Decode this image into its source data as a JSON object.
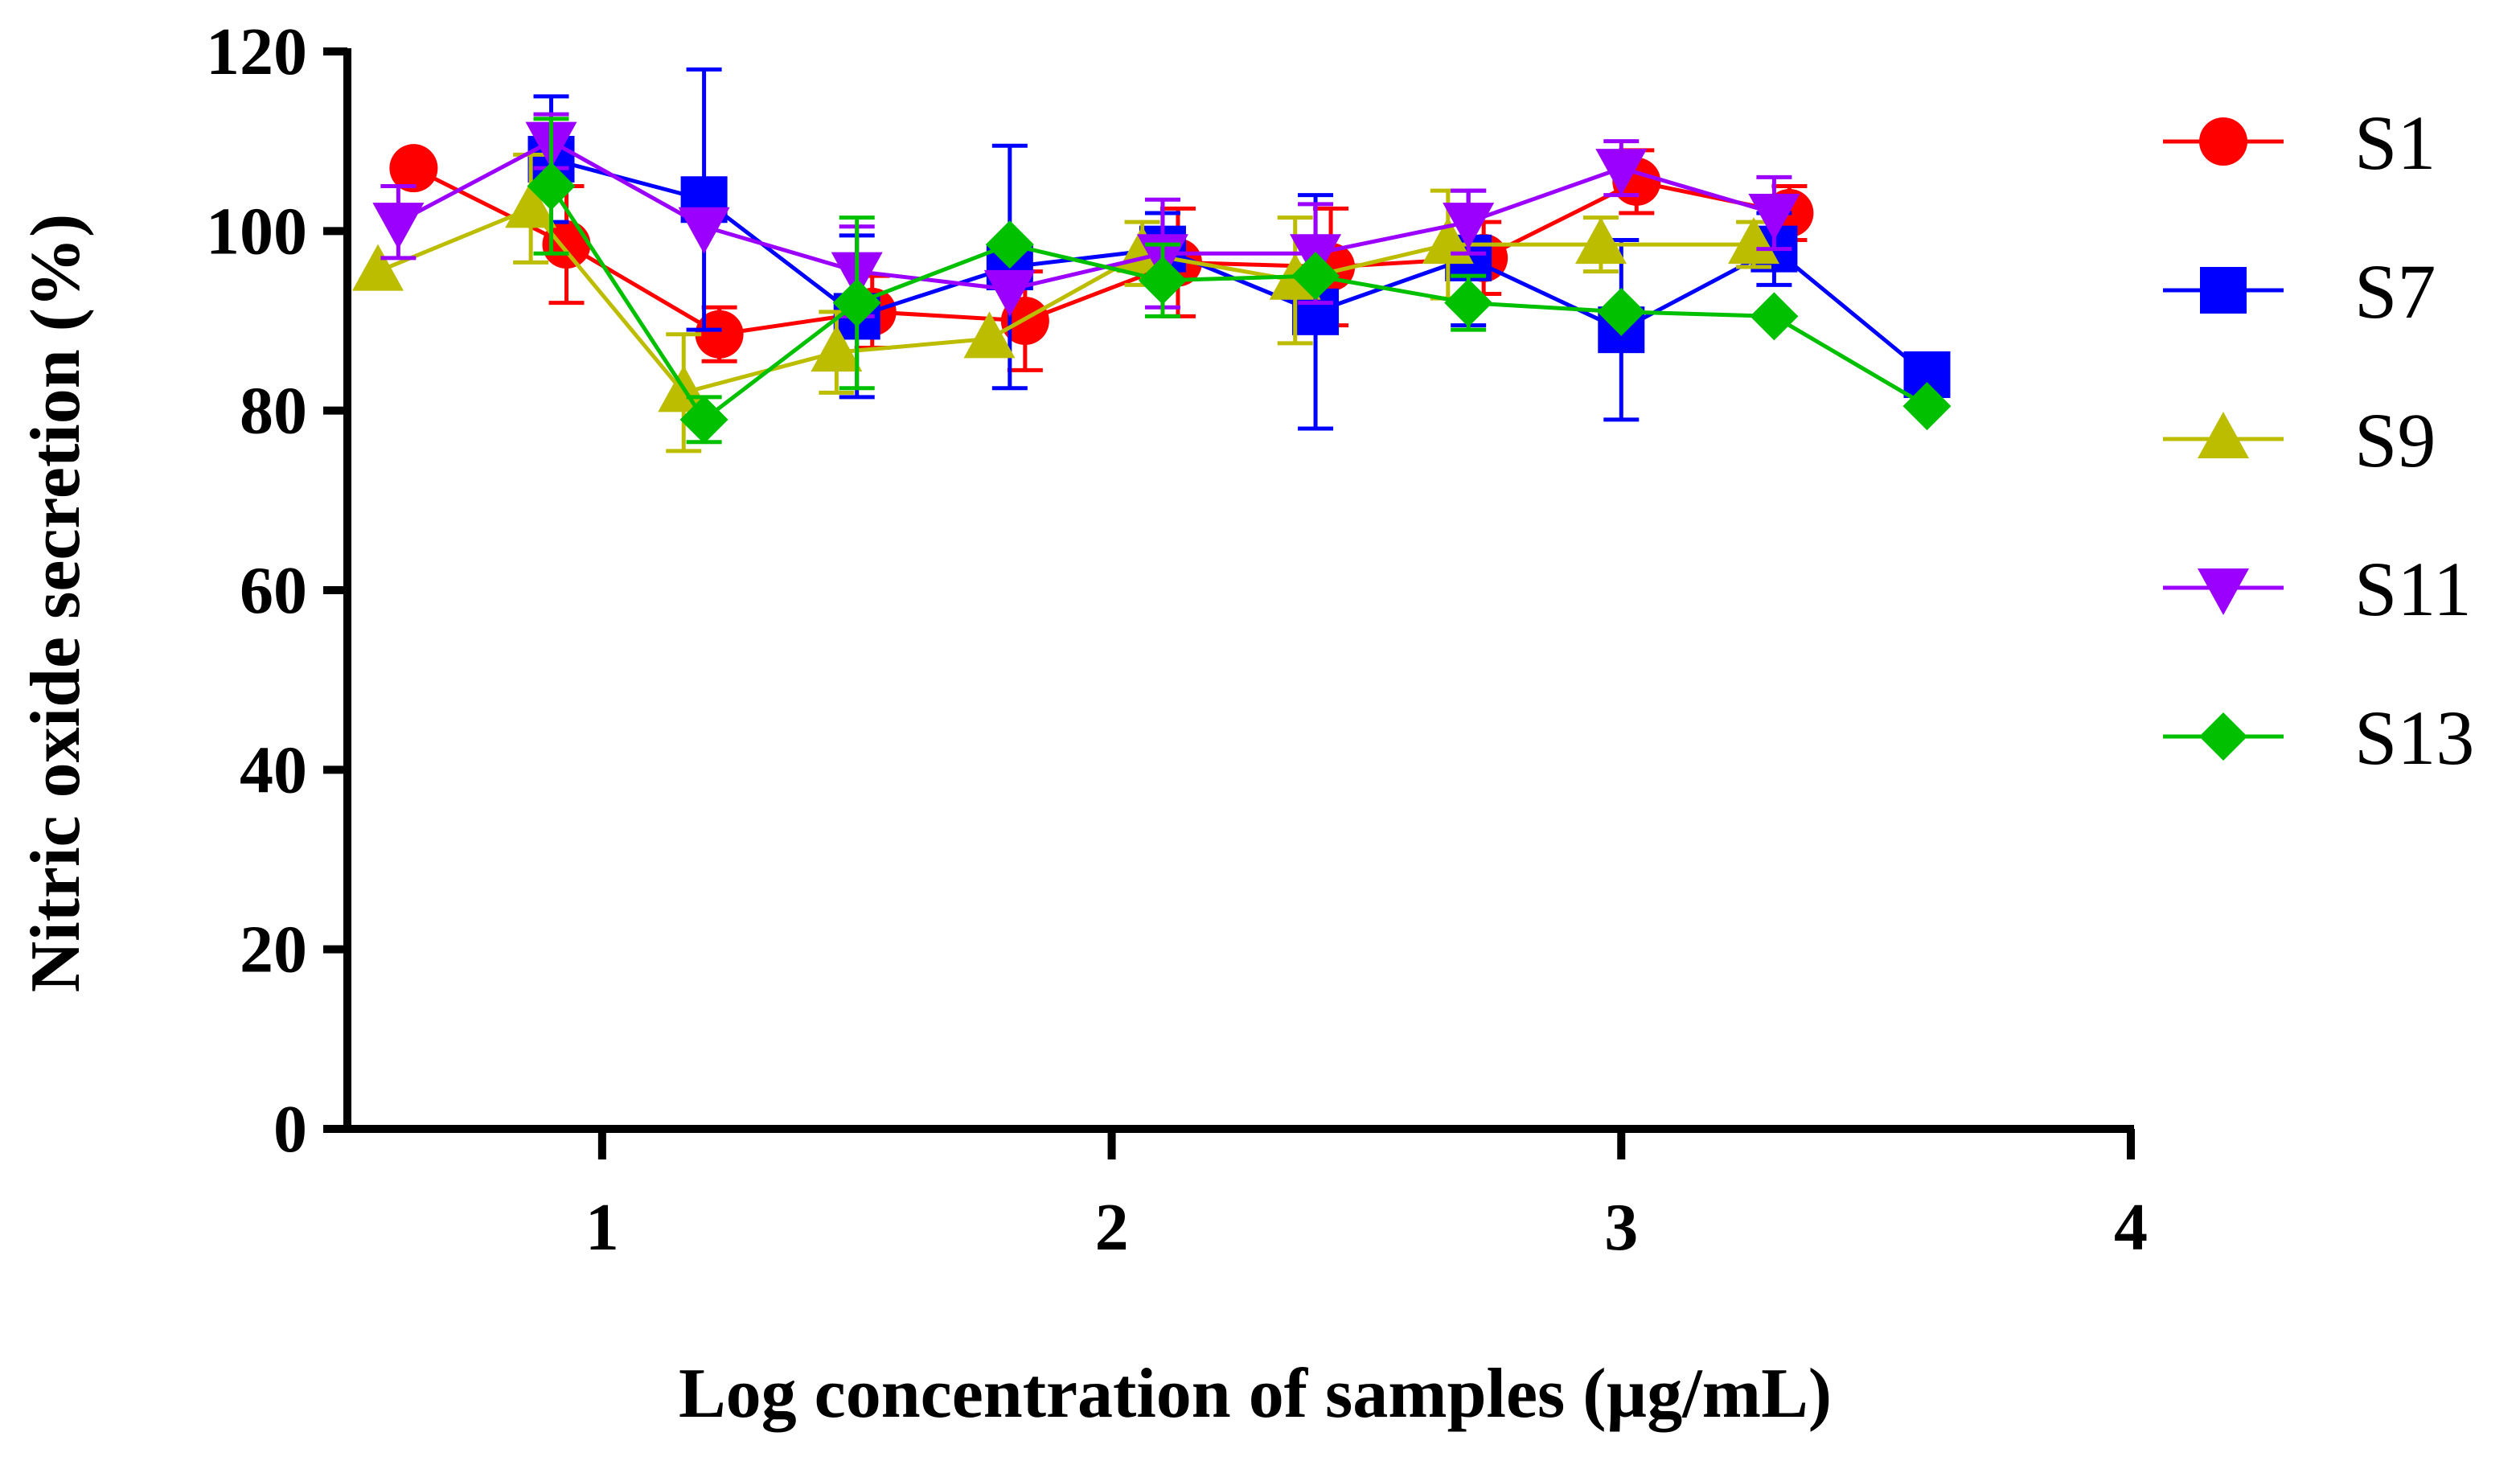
{
  "chart_data": {
    "type": "line",
    "title": "",
    "xlabel": "Log concentration of samples (µg/mL)",
    "ylabel": "Nitric oxide secretion (%)",
    "xlim": [
      0.5,
      4
    ],
    "ylim": [
      0,
      120
    ],
    "xticks": [
      1,
      2,
      3,
      4
    ],
    "xtick_labels": [
      "1",
      "2",
      "3",
      "4"
    ],
    "yticks": [
      0,
      20,
      40,
      60,
      80,
      100,
      120
    ],
    "ytick_labels": [
      "0",
      "20",
      "40",
      "60",
      "80",
      "100",
      "120"
    ],
    "grid": false,
    "legend_position": "right",
    "series": [
      {
        "name": "S1",
        "color": "#ff0000",
        "marker": "circle",
        "x": [
          0.63,
          0.93,
          1.23,
          1.53,
          1.83,
          2.13,
          2.43,
          2.73,
          3.03,
          3.33
        ],
        "y": [
          107,
          98.5,
          88.5,
          91,
          90,
          96.5,
          96,
          97,
          105.5,
          102
        ],
        "err": [
          0,
          6.5,
          3,
          4,
          5.5,
          6,
          6.5,
          4,
          3.5,
          3
        ]
      },
      {
        "name": "S7",
        "color": "#0000ff",
        "marker": "square",
        "x": [
          0.9,
          1.2,
          1.5,
          1.8,
          2.1,
          2.4,
          2.7,
          3.0,
          3.3,
          3.6
        ],
        "y": [
          108,
          103.5,
          90.5,
          96,
          98,
          91,
          97,
          89,
          98,
          84
        ],
        "err": [
          7,
          14.5,
          9,
          13.5,
          4,
          13,
          7.5,
          10,
          4,
          0
        ]
      },
      {
        "name": "S9",
        "color": "#bdbd00",
        "marker": "triangle-up",
        "x": [
          0.56,
          0.86,
          1.16,
          1.46,
          1.76,
          2.06,
          2.36,
          2.66,
          2.96,
          3.26
        ],
        "y": [
          95.5,
          102.5,
          82,
          86.5,
          88,
          97.5,
          94.5,
          98.5,
          98.5,
          98.5
        ],
        "err": [
          0,
          6,
          6.5,
          4.5,
          0,
          3.5,
          7,
          6,
          3,
          2.5
        ]
      },
      {
        "name": "S11",
        "color": "#9b00ff",
        "marker": "triangle-down",
        "x": [
          0.6,
          0.9,
          1.2,
          1.5,
          1.8,
          2.1,
          2.4,
          2.7,
          3.0,
          3.3
        ],
        "y": [
          101,
          110,
          100.5,
          95.5,
          93.5,
          97.5,
          97.5,
          101,
          107,
          102
        ],
        "err": [
          4,
          3,
          0,
          5,
          0,
          6,
          5.5,
          3.5,
          3,
          4
        ]
      },
      {
        "name": "S13",
        "color": "#00c000",
        "marker": "diamond",
        "x": [
          0.9,
          1.2,
          1.5,
          1.8,
          2.1,
          2.4,
          2.7,
          3.0,
          3.3,
          3.6
        ],
        "y": [
          105,
          79,
          92,
          98.5,
          94.5,
          95,
          92,
          91,
          90.5,
          80.5
        ],
        "err": [
          7.5,
          2.5,
          9.5,
          0,
          4,
          0,
          3,
          0,
          0,
          0
        ]
      }
    ]
  }
}
